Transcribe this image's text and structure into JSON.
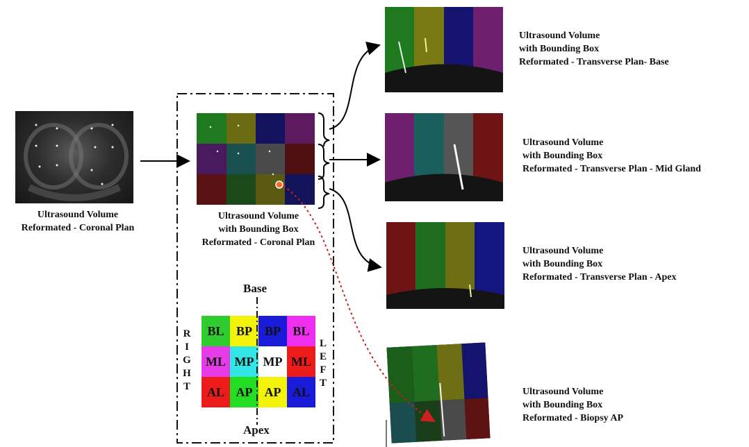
{
  "labels": {
    "coronal_source": [
      "Ultrasound Volume",
      "Reformated - Coronal Plan"
    ],
    "coronal_box": [
      "Ultrasound Volume",
      "with Bounding Box",
      "Reformated - Coronal Plan"
    ],
    "base": [
      "Ultrasound Volume",
      "with Bounding Box",
      "Reformated - Transverse Plan- Base"
    ],
    "mid": [
      "Ultrasound Volume",
      "with Bounding Box",
      "Reformated - Transverse Plan - Mid Gland"
    ],
    "apex": [
      "Ultrasound Volume",
      "with Bounding Box",
      "Reformated - Transverse Plan - Apex"
    ],
    "biopsy": [
      "Ultrasound Volume",
      "with Bounding Box",
      "Reformated - Biopsy AP"
    ]
  },
  "map": {
    "top": "Base",
    "bottom": "Apex",
    "right_side": "RIGHT",
    "left_side": "LEFT",
    "rows": [
      [
        {
          "code": "BL",
          "color": "#2ecc2e"
        },
        {
          "code": "BP",
          "color": "#f2f20a"
        },
        {
          "code": "BP",
          "color": "#1a1ad9"
        },
        {
          "code": "BL",
          "color": "#ef2fef"
        }
      ],
      [
        {
          "code": "ML",
          "color": "#e63be6"
        },
        {
          "code": "MP",
          "color": "#33e6e6"
        },
        {
          "code": "MP",
          "color": "#ffffff"
        },
        {
          "code": "ML",
          "color": "#ee1b1b"
        }
      ],
      [
        {
          "code": "AL",
          "color": "#ee1b1b"
        },
        {
          "code": "AP",
          "color": "#22dd22"
        },
        {
          "code": "AP",
          "color": "#f2f20a"
        },
        {
          "code": "AL",
          "color": "#1a1ad9"
        }
      ]
    ]
  },
  "colors": {
    "green": "#1f7a1f",
    "yellow": "#7a7a14",
    "navy": "#14146e",
    "magenta": "#6e1f6e",
    "teal": "#1a5e5e",
    "gray": "#555555",
    "red": "#6e1414",
    "blue": "#151580"
  }
}
